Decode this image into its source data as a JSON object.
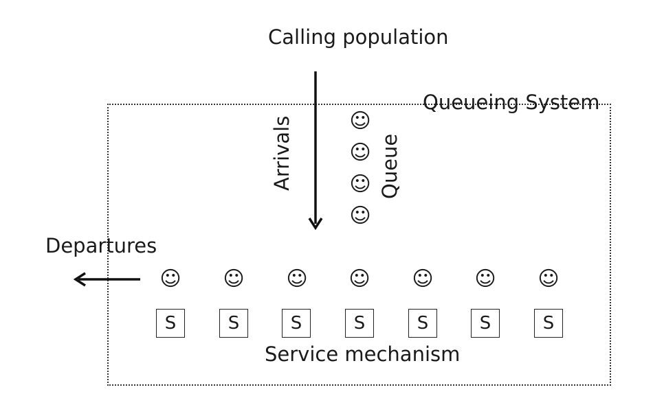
{
  "labels": {
    "calling_population": "Calling population",
    "queueing_system": "Queueing System",
    "arrivals": "Arrivals",
    "queue": "Queue",
    "departures": "Departures",
    "service_mechanism": "Service mechanism"
  },
  "queue_customers": [
    "☺",
    "☺",
    "☺",
    "☺",
    "☺",
    "☺"
  ],
  "service_customers": [
    "☺",
    "☺",
    "☺",
    "☺",
    "☺",
    "☺",
    "☺"
  ],
  "servers": [
    "S",
    "S",
    "S",
    "S",
    "S",
    "S",
    "S"
  ],
  "icons": {
    "customer": "smiley-face-icon",
    "arrivals_arrow": "arrow-down-icon",
    "departures_arrow": "arrow-left-icon"
  },
  "colors": {
    "ink": "#1a1a1a",
    "background": "#ffffff"
  }
}
